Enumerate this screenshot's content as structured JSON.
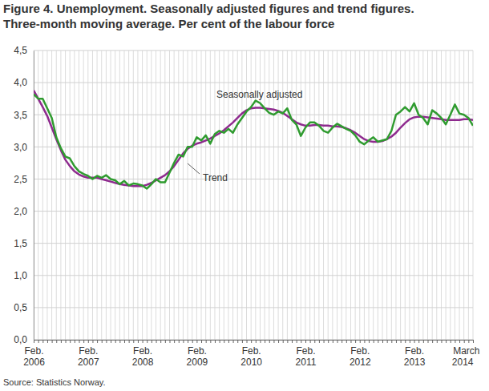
{
  "chart_data": {
    "type": "line",
    "title": "Figure 4. Unemployment. Seasonally adjusted figures and trend figures.",
    "subtitle": "Three-month moving average. Per cent of the labour force",
    "source": "Source: Statistics Norway.",
    "categories": [
      "Feb. 2006",
      null,
      null,
      null,
      null,
      null,
      null,
      null,
      null,
      null,
      null,
      null,
      "Feb. 2007",
      null,
      null,
      null,
      null,
      null,
      null,
      null,
      null,
      null,
      null,
      null,
      "Feb. 2008",
      null,
      null,
      null,
      null,
      null,
      null,
      null,
      null,
      null,
      null,
      null,
      "Feb. 2009",
      null,
      null,
      null,
      null,
      null,
      null,
      null,
      null,
      null,
      null,
      null,
      "Feb. 2010",
      null,
      null,
      null,
      null,
      null,
      null,
      null,
      null,
      null,
      null,
      null,
      "Feb. 2011",
      null,
      null,
      null,
      null,
      null,
      null,
      null,
      null,
      null,
      null,
      null,
      "Feb. 2012",
      null,
      null,
      null,
      null,
      null,
      null,
      null,
      null,
      null,
      null,
      null,
      "Feb. 2013",
      null,
      null,
      null,
      null,
      null,
      null,
      null,
      null,
      null,
      null,
      null,
      null,
      "March 2014"
    ],
    "series": [
      {
        "name": "Seasonally adjusted",
        "color": "#2f9b2f",
        "values": [
          3.82,
          3.75,
          3.75,
          3.6,
          3.45,
          3.15,
          2.98,
          2.85,
          2.82,
          2.7,
          2.62,
          2.58,
          2.55,
          2.5,
          2.55,
          2.52,
          2.56,
          2.5,
          2.48,
          2.42,
          2.47,
          2.4,
          2.43,
          2.42,
          2.4,
          2.35,
          2.42,
          2.5,
          2.45,
          2.45,
          2.6,
          2.75,
          2.88,
          2.85,
          3.0,
          3.0,
          3.15,
          3.1,
          3.18,
          3.05,
          3.2,
          3.25,
          3.22,
          3.28,
          3.22,
          3.35,
          3.45,
          3.55,
          3.62,
          3.72,
          3.68,
          3.6,
          3.53,
          3.5,
          3.55,
          3.52,
          3.6,
          3.42,
          3.35,
          3.17,
          3.3,
          3.38,
          3.38,
          3.33,
          3.25,
          3.22,
          3.3,
          3.36,
          3.32,
          3.28,
          3.25,
          3.18,
          3.08,
          3.04,
          3.1,
          3.15,
          3.08,
          3.1,
          3.12,
          3.25,
          3.5,
          3.55,
          3.62,
          3.55,
          3.68,
          3.5,
          3.45,
          3.35,
          3.57,
          3.52,
          3.45,
          3.35,
          3.5,
          3.66,
          3.52,
          3.5,
          3.45,
          3.33
        ]
      },
      {
        "name": "Trend",
        "color": "#8e2a8e",
        "values": [
          3.88,
          3.75,
          3.62,
          3.48,
          3.3,
          3.12,
          2.95,
          2.8,
          2.7,
          2.62,
          2.57,
          2.54,
          2.52,
          2.52,
          2.52,
          2.5,
          2.48,
          2.46,
          2.44,
          2.42,
          2.41,
          2.4,
          2.39,
          2.39,
          2.39,
          2.41,
          2.44,
          2.48,
          2.52,
          2.56,
          2.62,
          2.7,
          2.8,
          2.9,
          2.97,
          3.02,
          3.05,
          3.07,
          3.1,
          3.13,
          3.17,
          3.21,
          3.26,
          3.32,
          3.38,
          3.45,
          3.52,
          3.57,
          3.6,
          3.61,
          3.61,
          3.6,
          3.59,
          3.58,
          3.56,
          3.53,
          3.48,
          3.43,
          3.38,
          3.35,
          3.33,
          3.33,
          3.34,
          3.34,
          3.33,
          3.33,
          3.32,
          3.32,
          3.31,
          3.29,
          3.26,
          3.22,
          3.17,
          3.12,
          3.09,
          3.08,
          3.08,
          3.09,
          3.12,
          3.16,
          3.22,
          3.3,
          3.37,
          3.43,
          3.46,
          3.47,
          3.47,
          3.46,
          3.45,
          3.44,
          3.43,
          3.42,
          3.42,
          3.42,
          3.42,
          3.43,
          3.43,
          3.42
        ]
      }
    ],
    "ylim": [
      0,
      4.5
    ],
    "yticks": [
      {
        "value": 0,
        "label": "0,0"
      },
      {
        "value": 0.5,
        "label": "0,5"
      },
      {
        "value": 1,
        "label": "1,0"
      },
      {
        "value": 1.5,
        "label": "1,5"
      },
      {
        "value": 2,
        "label": "2,0"
      },
      {
        "value": 2.5,
        "label": "2,5"
      },
      {
        "value": 3,
        "label": "3,0"
      },
      {
        "value": 3.5,
        "label": "3,5"
      },
      {
        "value": 4,
        "label": "4,0"
      },
      {
        "value": 4.5,
        "label": "4,5"
      }
    ],
    "grid": true
  }
}
